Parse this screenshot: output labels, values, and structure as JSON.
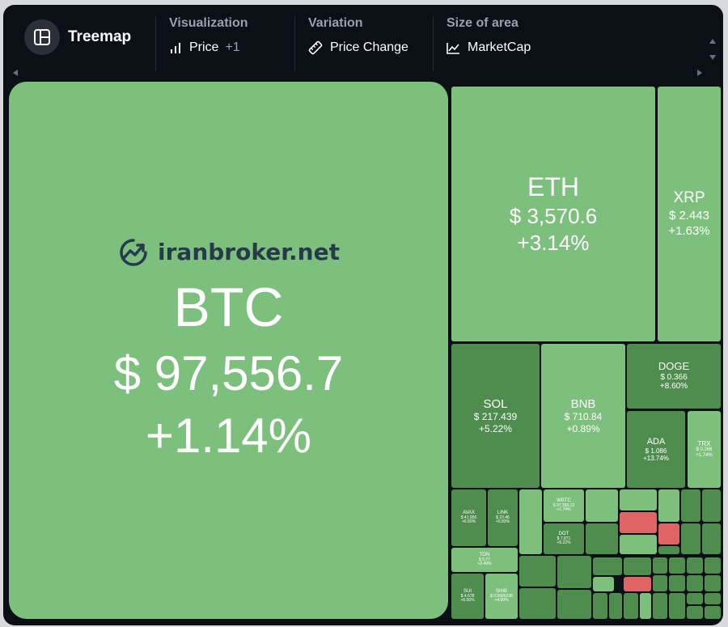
{
  "toolbar": {
    "title": "Treemap",
    "visualization": {
      "label": "Visualization",
      "value": "Price",
      "extra": "+1"
    },
    "variation": {
      "label": "Variation",
      "value": "Price Change"
    },
    "size": {
      "label": "Size of area",
      "value": "MarketCap"
    }
  },
  "watermark": "iranbroker.net",
  "colors": {
    "up_strong": "#4f8d4f",
    "up_light": "#7dc07d",
    "down": "#e06464",
    "background": "#0b0f16"
  },
  "tiles": {
    "btc": {
      "name": "BTC",
      "price": "$ 97,556.7",
      "change": "+1.14%"
    },
    "eth": {
      "name": "ETH",
      "price": "$ 3,570.6",
      "change": "+3.14%"
    },
    "xrp": {
      "name": "XRP",
      "price": "$ 2.443",
      "change": "+1.63%"
    },
    "sol": {
      "name": "SOL",
      "price": "$ 217.439",
      "change": "+5.22%"
    },
    "bnb": {
      "name": "BNB",
      "price": "$ 710.84",
      "change": "+0.89%"
    },
    "doge": {
      "name": "DOGE",
      "price": "$ 0.366",
      "change": "+8.60%"
    },
    "ada": {
      "name": "ADA",
      "price": "$ 1.086",
      "change": "+13.74%"
    },
    "trx": {
      "name": "TRX",
      "price": "$ 0.268",
      "change": "+1.74%"
    },
    "avax": {
      "name": "AVAX",
      "price": "$ 41.956",
      "change": "+6.50%"
    },
    "link": {
      "name": "LINK",
      "price": "$ 23.46",
      "change": "+5.83%"
    },
    "ton": {
      "name": "TON",
      "price": "$ 5.77",
      "change": "+2.49%"
    },
    "sui": {
      "name": "SUI",
      "price": "$ 4.578",
      "change": "+6.56%"
    },
    "shib": {
      "name": "SHIB",
      "price": "$ 0.0000238",
      "change": "+4.00%"
    },
    "dot": {
      "name": "DOT",
      "price": "$ 7.871",
      "change": "+6.22%"
    },
    "wbtc": {
      "name": "WBTC",
      "price": "$ 97,390.13",
      "change": "+1.74%"
    }
  }
}
